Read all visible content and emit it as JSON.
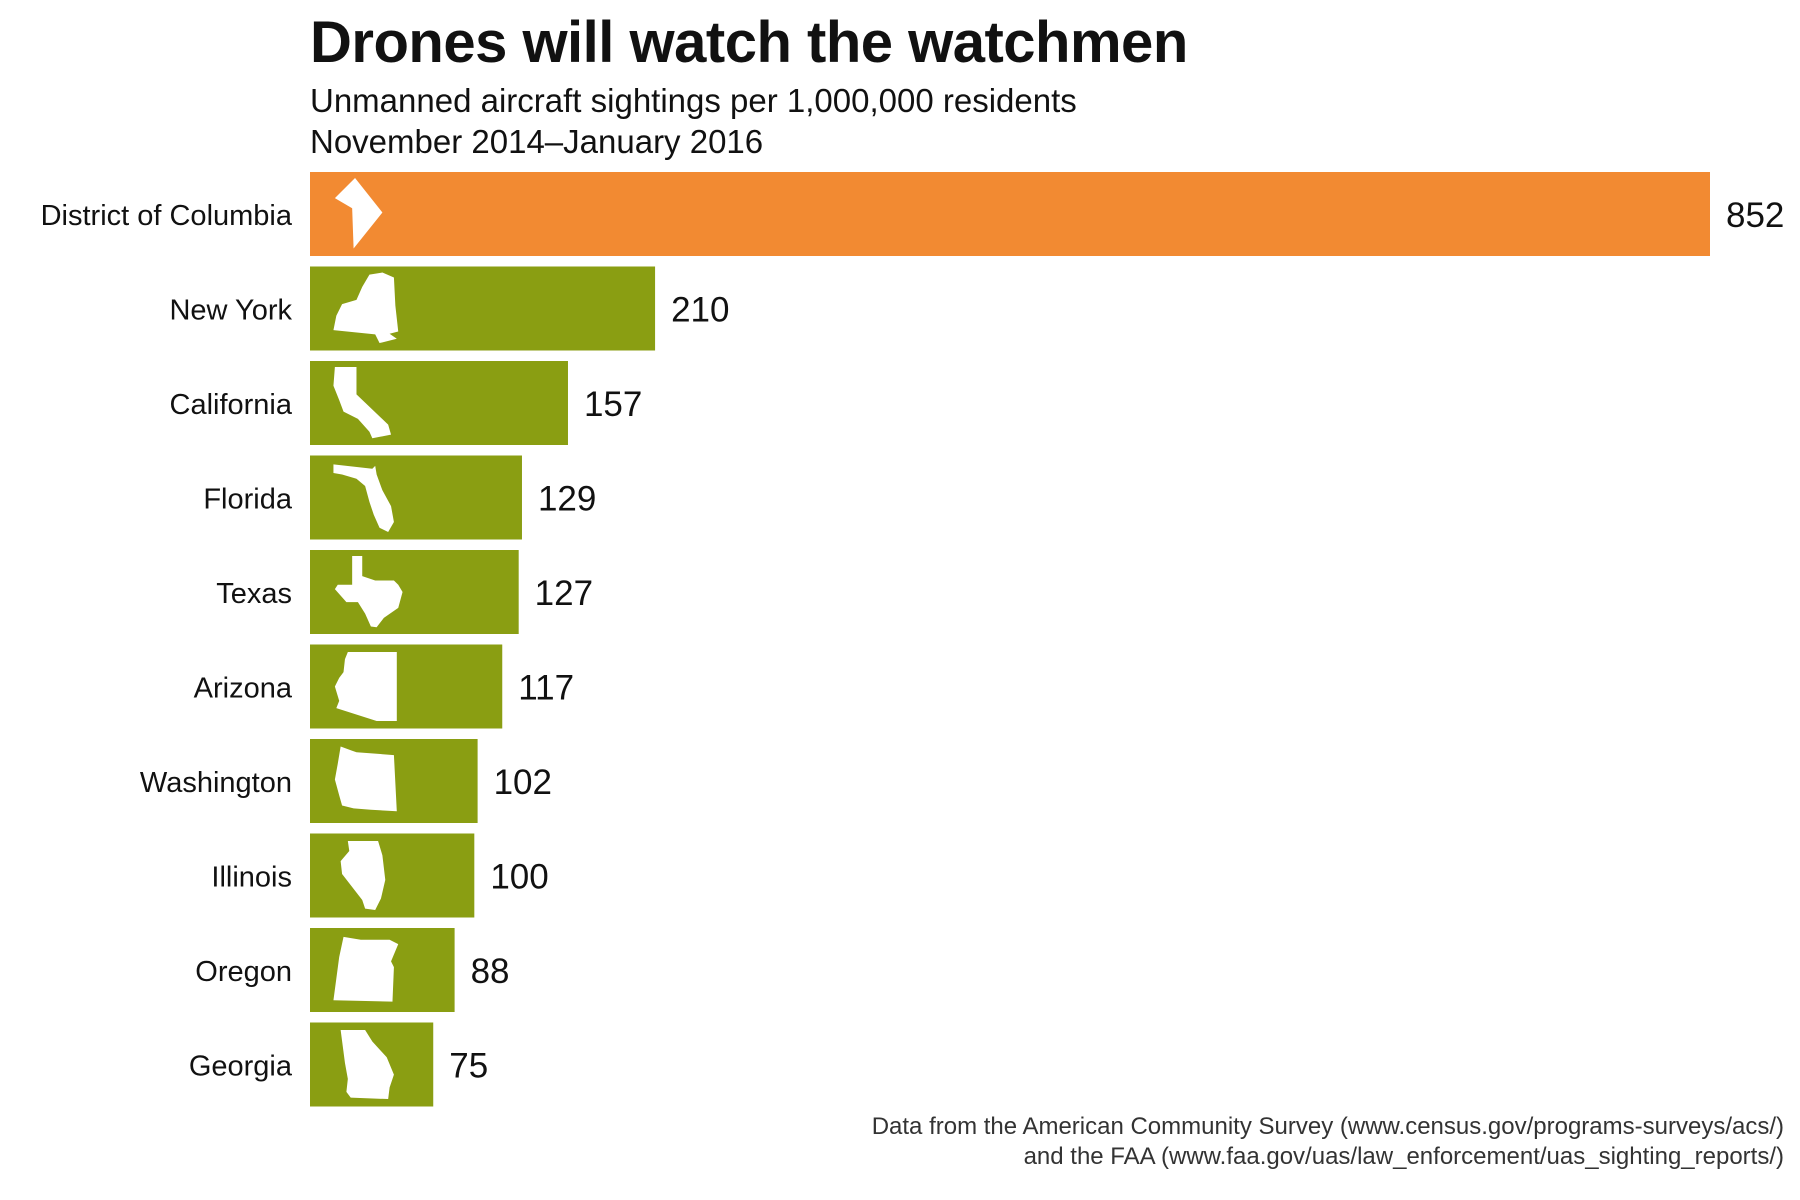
{
  "chart_data": {
    "type": "bar",
    "orientation": "horizontal",
    "title": "Drones will watch the watchmen",
    "subtitle": [
      "Unmanned aircraft sightings per 1,000,000 residents",
      "November 2014–January 2016"
    ],
    "categories": [
      "District of Columbia",
      "New York",
      "California",
      "Florida",
      "Texas",
      "Arizona",
      "Washington",
      "Illinois",
      "Oregon",
      "Georgia"
    ],
    "values": [
      852,
      210,
      157,
      129,
      127,
      117,
      102,
      100,
      88,
      75
    ],
    "highlight_category": "District of Columbia",
    "highlight_color": "#F28A32",
    "bar_color": "#8A9E12",
    "icon_color": "#FFFFFF",
    "icons": [
      "district-of-columbia-shape-icon",
      "new-york-shape-icon",
      "california-shape-icon",
      "florida-shape-icon",
      "texas-shape-icon",
      "arizona-shape-icon",
      "washington-shape-icon",
      "illinois-shape-icon",
      "oregon-shape-icon",
      "georgia-shape-icon"
    ],
    "xlabel": "",
    "ylabel": "",
    "xlim": [
      0,
      852
    ],
    "grid": false,
    "legend": "none",
    "value_labels": true
  },
  "source": {
    "line1": "Data from the American Community Survey (www.census.gov/programs-surveys/acs/)",
    "line2": "and the FAA (www.faa.gov/uas/law_enforcement/uas_sighting_reports/)"
  }
}
